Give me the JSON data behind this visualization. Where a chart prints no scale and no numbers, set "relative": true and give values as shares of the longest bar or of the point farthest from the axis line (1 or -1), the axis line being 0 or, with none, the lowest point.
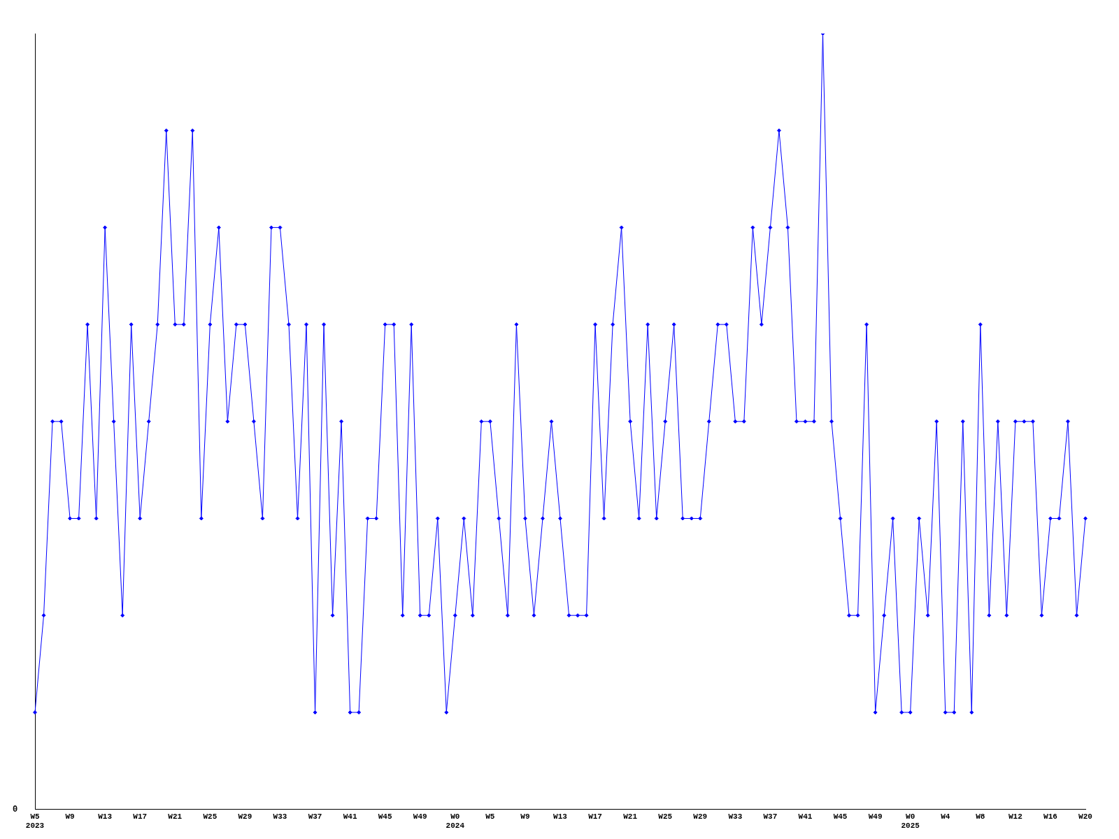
{
  "chart_data": {
    "type": "line",
    "relative": true,
    "marker": "diamond",
    "line_style": "solid",
    "grid": false,
    "legend": false,
    "categories": [
      "W5\n2023",
      null,
      null,
      null,
      "W9",
      null,
      null,
      null,
      "W13",
      null,
      null,
      null,
      "W17",
      null,
      null,
      null,
      "W21",
      null,
      null,
      null,
      "W25",
      null,
      null,
      null,
      "W29",
      null,
      null,
      null,
      "W33",
      null,
      null,
      null,
      "W37",
      null,
      null,
      null,
      "W41",
      null,
      null,
      null,
      "W45",
      null,
      null,
      null,
      "W49",
      null,
      null,
      null,
      "W0\n2024",
      null,
      null,
      null,
      "W5",
      null,
      null,
      null,
      "W9",
      null,
      null,
      null,
      "W13",
      null,
      null,
      null,
      "W17",
      null,
      null,
      null,
      "W21",
      null,
      null,
      null,
      "W25",
      null,
      null,
      null,
      "W29",
      null,
      null,
      null,
      "W33",
      null,
      null,
      null,
      "W37",
      null,
      null,
      null,
      "W41",
      null,
      null,
      null,
      "W45",
      null,
      null,
      null,
      "W49",
      null,
      null,
      null,
      "W0\n2025",
      null,
      null,
      null,
      "W4",
      null,
      null,
      null,
      "W8",
      null,
      null,
      null,
      "W12",
      null,
      null,
      null,
      "W16",
      null,
      null,
      null,
      "W20"
    ],
    "series": [
      {
        "color": "#0000ff",
        "values": [
          0.125,
          0.25,
          0.5,
          0.5,
          0.375,
          0.375,
          0.625,
          0.375,
          0.75,
          0.5,
          0.25,
          0.625,
          0.375,
          0.5,
          0.625,
          0.875,
          0.625,
          0.625,
          0.875,
          0.375,
          0.625,
          0.75,
          0.5,
          0.625,
          0.625,
          0.5,
          0.375,
          0.75,
          0.75,
          0.625,
          0.375,
          0.625,
          0.125,
          0.625,
          0.25,
          0.5,
          0.125,
          0.125,
          0.375,
          0.375,
          0.625,
          0.625,
          0.25,
          0.625,
          0.25,
          0.25,
          0.375,
          0.125,
          0.25,
          0.375,
          0.25,
          0.5,
          0.5,
          0.375,
          0.25,
          0.625,
          0.375,
          0.25,
          0.375,
          0.5,
          0.375,
          0.25,
          0.25,
          0.25,
          0.625,
          0.375,
          0.625,
          0.75,
          0.5,
          0.375,
          0.625,
          0.375,
          0.5,
          0.625,
          0.375,
          0.375,
          0.375,
          0.5,
          0.625,
          0.625,
          0.5,
          0.5,
          0.75,
          0.625,
          0.75,
          0.875,
          0.75,
          0.5,
          0.5,
          0.5,
          1,
          0.5,
          0.375,
          0.25,
          0.25,
          0.625,
          0.125,
          0.25,
          0.375,
          0.125,
          0.125,
          0.375,
          0.25,
          0.5,
          0.125,
          0.125,
          0.5,
          0.125,
          0.625,
          0.25,
          0.5,
          0.25,
          0.5,
          0.5,
          0.5,
          0.25,
          0.375,
          0.375,
          0.5,
          0.25,
          0.375
        ]
      }
    ],
    "annotations": [
      "0"
    ]
  }
}
